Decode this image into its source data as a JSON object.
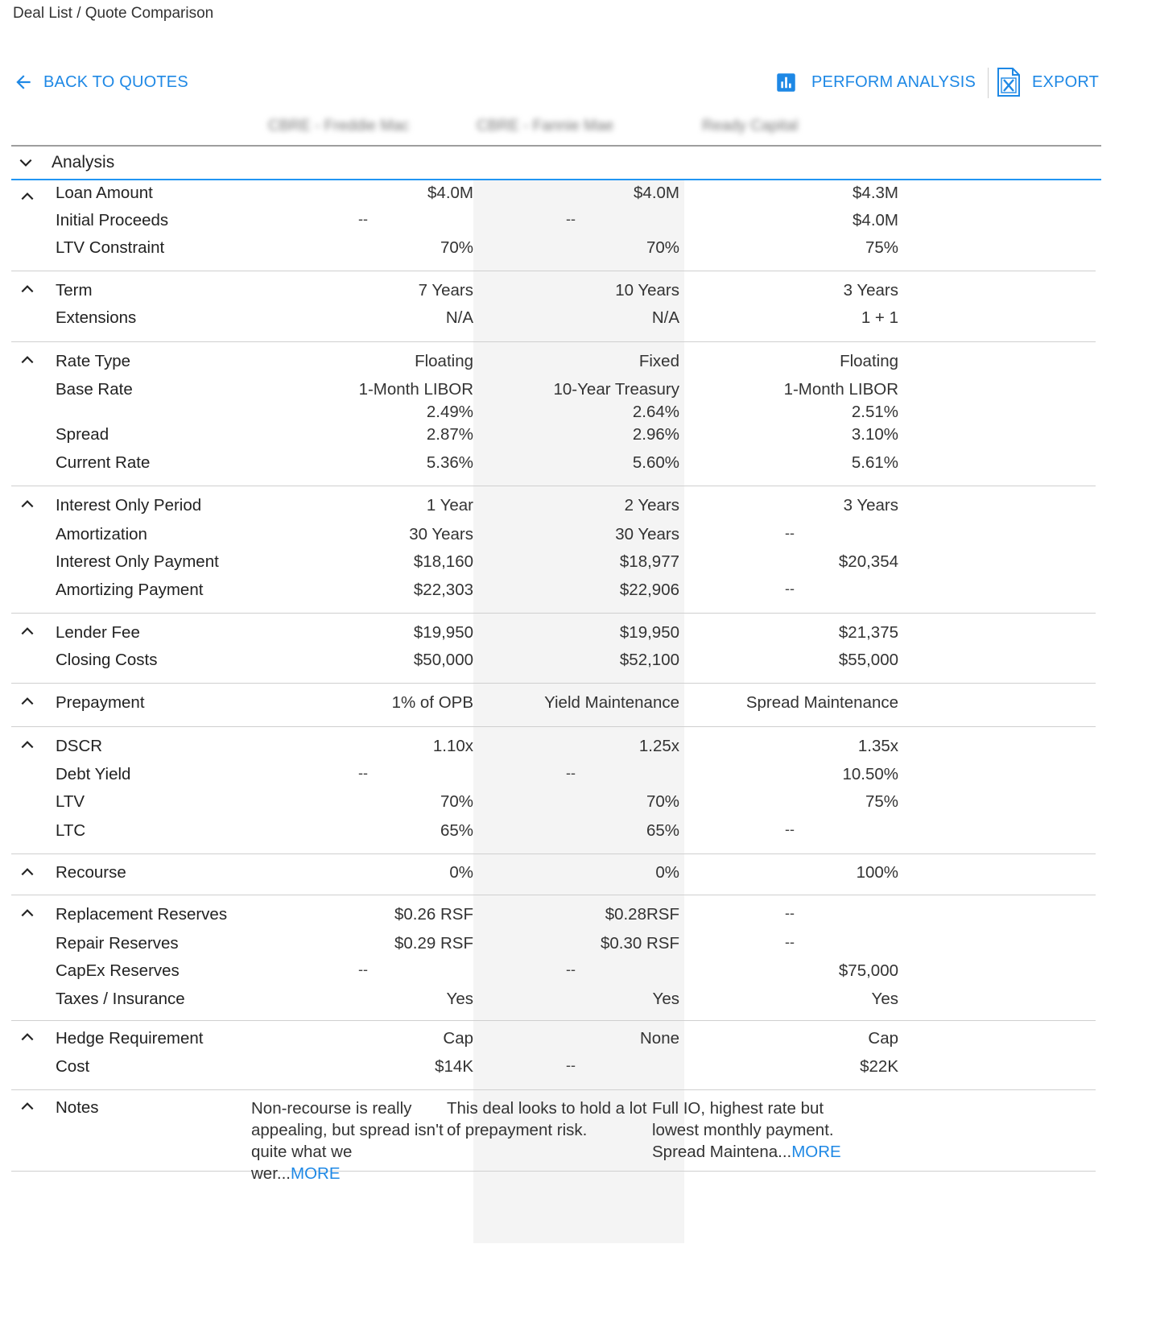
{
  "breadcrumb": "Deal List / Quote Comparison",
  "toolbar": {
    "back": "BACK TO QUOTES",
    "analysis": "PERFORM ANALYSIS",
    "export": "EXPORT"
  },
  "columns": [
    "CBRE - Freddie Mac",
    "CBRE - Fannie Mae",
    "Ready Capital"
  ],
  "analysis_label": "Analysis",
  "colors": {
    "accent": "#1e88e5",
    "shade": "#f4f4f4"
  },
  "rows": {
    "loan_amount": {
      "label": "Loan Amount",
      "v": [
        "$4.0M",
        "$4.0M",
        "$4.3M"
      ]
    },
    "initial_proceeds": {
      "label": "Initial Proceeds",
      "v": [
        "--",
        "--",
        "$4.0M"
      ]
    },
    "ltv_constraint": {
      "label": "LTV Constraint",
      "v": [
        "70%",
        "70%",
        "75%"
      ]
    },
    "term": {
      "label": "Term",
      "v": [
        "7 Years",
        "10 Years",
        "3 Years"
      ]
    },
    "extensions": {
      "label": "Extensions",
      "v": [
        "N/A",
        "N/A",
        "1 + 1"
      ]
    },
    "rate_type": {
      "label": "Rate Type",
      "v": [
        "Floating",
        "Fixed",
        "Floating"
      ]
    },
    "base_rate": {
      "label": "Base Rate",
      "v": [
        "1-Month LIBOR",
        "10-Year Treasury",
        "1-Month LIBOR"
      ],
      "v_sub": [
        "2.49%",
        "2.64%",
        "2.51%"
      ]
    },
    "spread": {
      "label": "Spread",
      "v": [
        "2.87%",
        "2.96%",
        "3.10%"
      ]
    },
    "current_rate": {
      "label": "Current Rate",
      "v": [
        "5.36%",
        "5.60%",
        "5.61%"
      ]
    },
    "io_period": {
      "label": "Interest Only Period",
      "v": [
        "1 Year",
        "2 Years",
        "3 Years"
      ]
    },
    "amortization": {
      "label": "Amortization",
      "v": [
        "30 Years",
        "30 Years",
        "--"
      ]
    },
    "io_payment": {
      "label": "Interest Only Payment",
      "v": [
        "$18,160",
        "$18,977",
        "$20,354"
      ]
    },
    "amort_payment": {
      "label": "Amortizing Payment",
      "v": [
        "$22,303",
        "$22,906",
        "--"
      ]
    },
    "lender_fee": {
      "label": "Lender Fee",
      "v": [
        "$19,950",
        "$19,950",
        "$21,375"
      ]
    },
    "closing_costs": {
      "label": "Closing Costs",
      "v": [
        "$50,000",
        "$52,100",
        "$55,000"
      ]
    },
    "prepayment": {
      "label": "Prepayment",
      "v": [
        "1% of OPB",
        "Yield Maintenance",
        "Spread Maintenance"
      ]
    },
    "dscr": {
      "label": "DSCR",
      "v": [
        "1.10x",
        "1.25x",
        "1.35x"
      ]
    },
    "debt_yield": {
      "label": "Debt Yield",
      "v": [
        "--",
        "--",
        "10.50%"
      ]
    },
    "ltv": {
      "label": "LTV",
      "v": [
        "70%",
        "70%",
        "75%"
      ]
    },
    "ltc": {
      "label": "LTC",
      "v": [
        "65%",
        "65%",
        "--"
      ]
    },
    "recourse": {
      "label": "Recourse",
      "v": [
        "0%",
        "0%",
        "100%"
      ]
    },
    "replacement_reserves": {
      "label": "Replacement Reserves",
      "v": [
        "$0.26 RSF",
        "$0.28RSF",
        "--"
      ]
    },
    "repair_reserves": {
      "label": "Repair Reserves",
      "v": [
        "$0.29 RSF",
        "$0.30 RSF",
        "--"
      ]
    },
    "capex_reserves": {
      "label": "CapEx Reserves",
      "v": [
        "--",
        "--",
        "$75,000"
      ]
    },
    "taxes_insurance": {
      "label": "Taxes / Insurance",
      "v": [
        "Yes",
        "Yes",
        "Yes"
      ]
    },
    "hedge_requirement": {
      "label": "Hedge Requirement",
      "v": [
        "Cap",
        "None",
        "Cap"
      ]
    },
    "cost": {
      "label": "Cost",
      "v": [
        "$14K",
        "--",
        "$22K"
      ]
    }
  },
  "notes": {
    "label": "Notes",
    "items": [
      {
        "lines": [
          "Non-recourse is really",
          "appealing, but spread isn't",
          "quite what we wer..."
        ],
        "more": "MORE"
      },
      {
        "lines": [
          "This deal looks to hold a lot",
          "of prepayment risk."
        ],
        "more": ""
      },
      {
        "lines": [
          "Full IO, highest rate but",
          "lowest monthly payment.",
          "Spread Maintena..."
        ],
        "more": "MORE"
      }
    ]
  }
}
